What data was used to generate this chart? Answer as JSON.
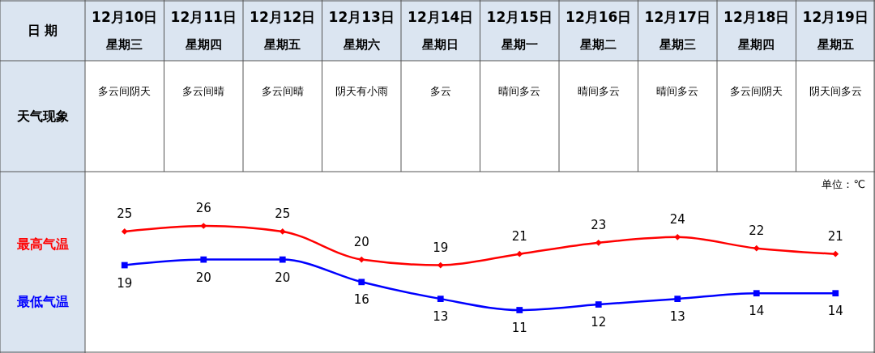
{
  "chart_data": {
    "type": "line",
    "categories": [
      "12月10日",
      "12月11日",
      "12月12日",
      "12月13日",
      "12月14日",
      "12月15日",
      "12月16日",
      "12月17日",
      "12月18日",
      "12月19日"
    ],
    "series": [
      {
        "name": "最高气温",
        "color": "#ff0000",
        "marker": "diamond",
        "values": [
          25,
          26,
          25,
          20,
          19,
          21,
          23,
          24,
          22,
          21
        ]
      },
      {
        "name": "最低气温",
        "color": "#0000ff",
        "marker": "square",
        "values": [
          19,
          20,
          20,
          16,
          13,
          11,
          12,
          13,
          14,
          14
        ]
      }
    ],
    "data_labels": true,
    "legend": "left",
    "line_style": "solid",
    "annotations": [
      "日 期",
      "天气现象",
      "单位：℃",
      "星期三",
      "星期四",
      "星期五",
      "星期六",
      "星期日",
      "星期一",
      "星期二",
      "星期三",
      "星期四",
      "星期五",
      "多云间阴天",
      "多云间晴",
      "多云间晴",
      "阴天有小雨",
      "多云",
      "晴间多云",
      "晴间多云",
      "晴间多云",
      "多云间阴天",
      "阴天间多云"
    ]
  }
}
